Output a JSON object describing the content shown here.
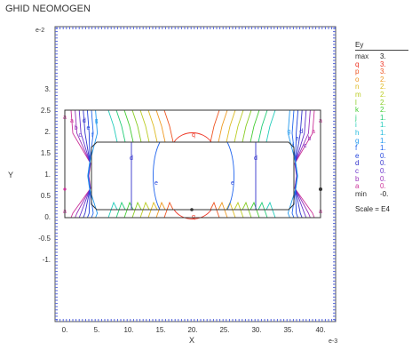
{
  "app_title": "GHID NEOMOGEN",
  "axes": {
    "x_label": "X",
    "y_label": "Y",
    "x_exponent": "e-3",
    "y_exponent": "e-2",
    "x_ticks": [
      "0.",
      "5.",
      "10.",
      "15.",
      "20.",
      "25.",
      "30.",
      "35.",
      "40."
    ],
    "y_ticks": [
      "3.",
      "2.5",
      "2.",
      "1.5",
      "1.",
      "0.5",
      "0.",
      "-0.5",
      "-1."
    ]
  },
  "legend": {
    "title": "Ey",
    "rows": [
      {
        "key": "max",
        "value": "3.",
        "color": "#222222"
      },
      {
        "key": "q",
        "value": "3.",
        "color": "#ee3322"
      },
      {
        "key": "p",
        "value": "3.",
        "color": "#ee5522"
      },
      {
        "key": "o",
        "value": "2.",
        "color": "#ee9922"
      },
      {
        "key": "n",
        "value": "2.",
        "color": "#ddbb22"
      },
      {
        "key": "m",
        "value": "2.",
        "color": "#bbcc22"
      },
      {
        "key": "l",
        "value": "2.",
        "color": "#88cc22"
      },
      {
        "key": "k",
        "value": "2.",
        "color": "#44cc33"
      },
      {
        "key": "j",
        "value": "1.",
        "color": "#22cc77"
      },
      {
        "key": "i",
        "value": "1.",
        "color": "#22ccbb"
      },
      {
        "key": "h",
        "value": "1.",
        "color": "#22bbdd"
      },
      {
        "key": "g",
        "value": "1.",
        "color": "#2299ee"
      },
      {
        "key": "f",
        "value": "1.",
        "color": "#2266ee"
      },
      {
        "key": "e",
        "value": "0.",
        "color": "#2244dd"
      },
      {
        "key": "d",
        "value": "0.",
        "color": "#3333cc"
      },
      {
        "key": "c",
        "value": "0.",
        "color": "#6633cc"
      },
      {
        "key": "b",
        "value": "0.",
        "color": "#9933bb"
      },
      {
        "key": "a",
        "value": "0.",
        "color": "#cc3399"
      },
      {
        "key": "min",
        "value": "-0.",
        "color": "#222222"
      }
    ],
    "scale": "Scale = E4"
  },
  "contour_labels": [
    "a",
    "b",
    "c",
    "d",
    "e",
    "f",
    "g",
    "h",
    "i",
    "j",
    "k",
    "l",
    "m",
    "n",
    "o",
    "p",
    "q"
  ]
}
